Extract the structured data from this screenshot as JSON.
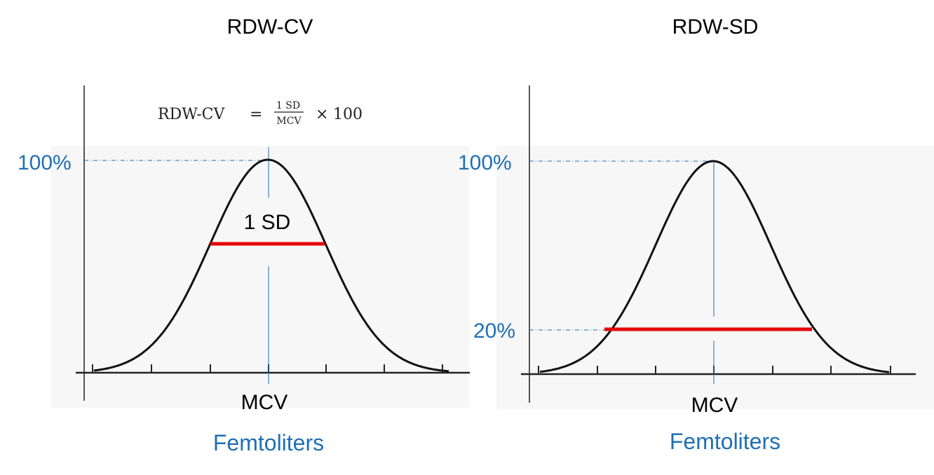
{
  "colors": {
    "accent_blue": "#1f6fb5",
    "highlight_red": "#e60000",
    "curve_black": "#111111",
    "panel_bg": "#f7f7f7"
  },
  "left_panel": {
    "title": "RDW-CV",
    "formula": {
      "lhs": "RDW-CV",
      "equals": "=",
      "numerator": "1 SD",
      "denominator": "MCV",
      "times": "×",
      "multiplier": "100"
    },
    "peak_label": "100%",
    "band_label": "1 SD",
    "center_label": "MCV",
    "unit_label": "Femtoliters",
    "band_height_fraction": 0.6
  },
  "right_panel": {
    "title": "RDW-SD",
    "peak_label": "100%",
    "band_label": "20%",
    "center_label": "MCV",
    "unit_label": "Femtoliters",
    "band_height_fraction": 0.2
  }
}
